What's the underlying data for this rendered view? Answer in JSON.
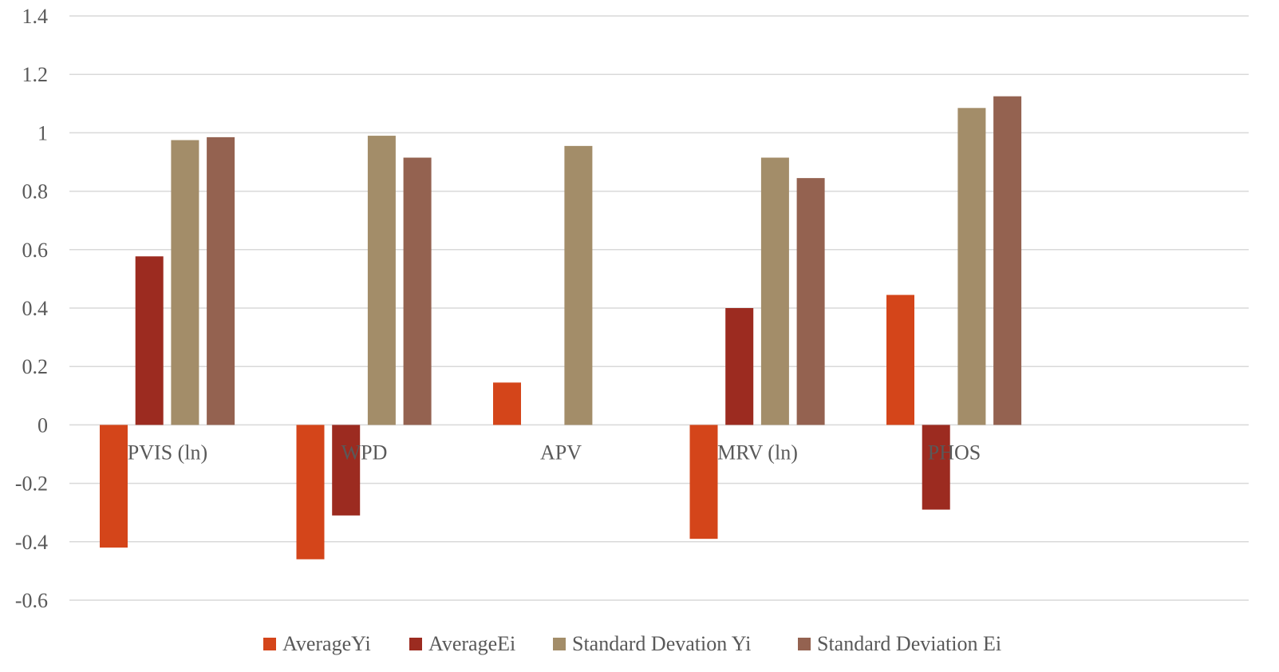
{
  "chart_data": {
    "type": "bar",
    "title": "",
    "xlabel": "",
    "ylabel": "",
    "categories": [
      "PVIS (ln)",
      "WPD",
      "APV",
      "MRV (ln)",
      "PHOS"
    ],
    "ylim": [
      -0.6,
      1.4
    ],
    "yticks": [
      1.4,
      1.2,
      1,
      0.8,
      0.6,
      0.4,
      0.2,
      0,
      -0.2,
      -0.4,
      -0.6
    ],
    "ytick_labels": [
      "1.4",
      "1.2",
      "1",
      "0.8",
      "0.6",
      "0.4",
      "0.2",
      "0",
      "-0.2",
      "-0.4",
      "-0.6"
    ],
    "grid": true,
    "legend_position": "bottom",
    "series": [
      {
        "name": "AverageYi",
        "color": "#d4451a",
        "values": [
          -0.42,
          -0.46,
          0.145,
          -0.39,
          0.445
        ]
      },
      {
        "name": "AverageEi",
        "color": "#9c2b20",
        "values": [
          0.577,
          -0.31,
          null,
          0.4,
          -0.29
        ]
      },
      {
        "name": "Standard Devation Yi",
        "color": "#a38d69",
        "values": [
          0.975,
          0.99,
          0.955,
          0.915,
          1.085
        ]
      },
      {
        "name": "Standard Deviation Ei",
        "color": "#946250",
        "values": [
          0.985,
          0.915,
          null,
          0.845,
          1.125
        ]
      }
    ]
  }
}
